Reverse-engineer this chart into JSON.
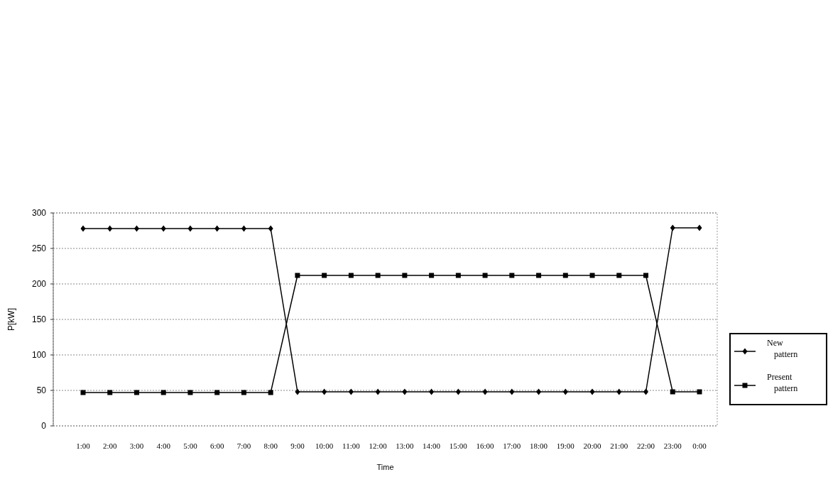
{
  "chart_data": {
    "type": "line",
    "xlabel": "Time",
    "ylabel": "P[kW]",
    "categories": [
      "1:00",
      "2:00",
      "3:00",
      "4:00",
      "5:00",
      "6:00",
      "7:00",
      "8:00",
      "9:00",
      "10:00",
      "11:00",
      "12:00",
      "13:00",
      "14:00",
      "15:00",
      "16:00",
      "17:00",
      "18:00",
      "19:00",
      "20:00",
      "21:00",
      "22:00",
      "23:00",
      "0:00"
    ],
    "series": [
      {
        "name": "New pattern",
        "color": "#000000",
        "marker": "diamond",
        "values": [
          278,
          278,
          278,
          278,
          278,
          278,
          278,
          278,
          48,
          48,
          48,
          48,
          48,
          48,
          48,
          48,
          48,
          48,
          48,
          48,
          48,
          48,
          279,
          279
        ]
      },
      {
        "name": "Present pattern",
        "color": "#000000",
        "marker": "square",
        "values": [
          47,
          47,
          47,
          47,
          47,
          47,
          47,
          47,
          212,
          212,
          212,
          212,
          212,
          212,
          212,
          212,
          212,
          212,
          212,
          212,
          212,
          212,
          48,
          48
        ]
      }
    ],
    "ylim": [
      0,
      300
    ],
    "yticks": [
      0,
      50,
      100,
      150,
      200,
      250,
      300
    ],
    "grid": "y",
    "legend": "right",
    "line_style": "solid"
  }
}
